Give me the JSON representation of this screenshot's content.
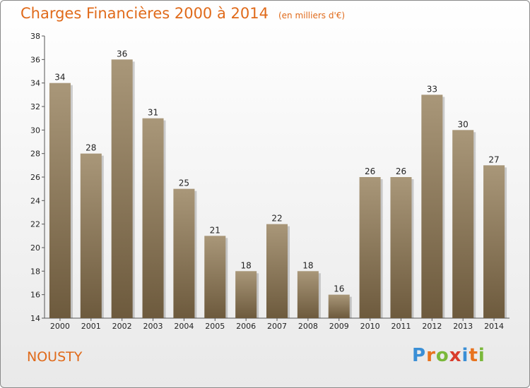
{
  "header": {
    "title": "Charges Financières 2000 à 2014",
    "subtitle": "(en milliers d'€)"
  },
  "footer": {
    "city": "NOUSTY",
    "logo_letters": [
      "P",
      "r",
      "o",
      "x",
      "i",
      "t",
      "i"
    ],
    "logo_colors": [
      "#3a8fd6",
      "#e8731e",
      "#7ab83a",
      "#d93c2c",
      "#3a8fd6",
      "#e8731e",
      "#7ab83a"
    ]
  },
  "colors": {
    "bar_top": "#a99779",
    "bar_bottom": "#6d5a3d",
    "accent": "#e06a1a"
  },
  "chart_data": {
    "type": "bar",
    "categories": [
      "2000",
      "2001",
      "2002",
      "2003",
      "2004",
      "2005",
      "2006",
      "2007",
      "2008",
      "2009",
      "2010",
      "2011",
      "2012",
      "2013",
      "2014"
    ],
    "values": [
      34,
      28,
      36,
      31,
      25,
      21,
      18,
      22,
      18,
      16,
      26,
      26,
      33,
      30,
      27
    ],
    "ylim": [
      14,
      38
    ],
    "yticks": [
      14,
      16,
      18,
      20,
      22,
      24,
      26,
      28,
      30,
      32,
      34,
      36,
      38
    ],
    "grid": false,
    "legend": "none"
  }
}
